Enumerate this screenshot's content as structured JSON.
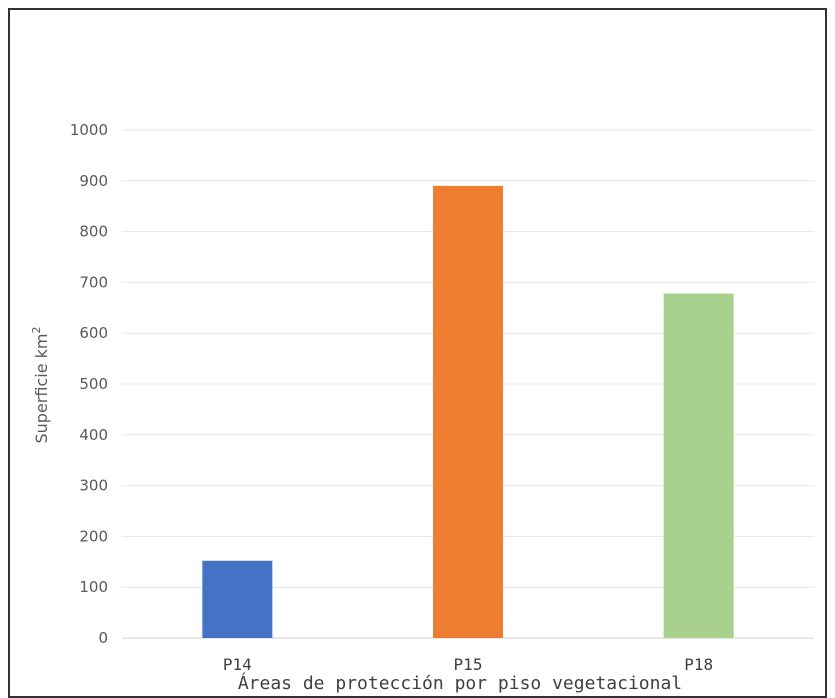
{
  "chart_data": {
    "type": "bar",
    "categories": [
      "P14",
      "P15",
      "P18"
    ],
    "values": [
      152,
      890,
      678
    ],
    "colors": [
      "#4472C4",
      "#ED7D31",
      "#A9D18E"
    ],
    "title": "",
    "xlabel": "Áreas de protección por piso vegetacional",
    "ylabel": "Superficie km",
    "ylabel_sup": "2",
    "ylim": [
      0,
      1000
    ],
    "yticks": [
      0,
      100,
      200,
      300,
      400,
      500,
      600,
      700,
      800,
      900,
      1000
    ],
    "grid": true,
    "legend": "none"
  }
}
